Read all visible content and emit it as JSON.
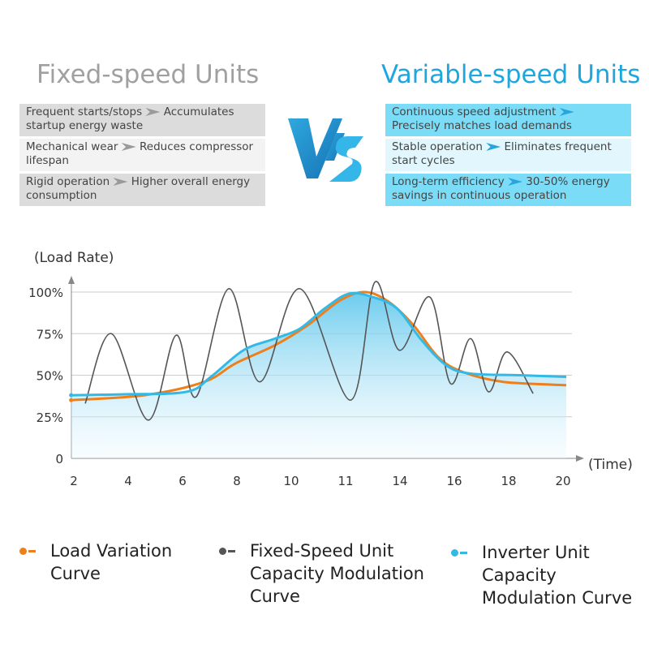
{
  "left": {
    "title": "Fixed-speed Units",
    "rows": [
      {
        "a": "Frequent starts/stops",
        "b": "Accumulates startup energy waste"
      },
      {
        "a": "Mechanical wear",
        "b": "Reduces compressor lifespan"
      },
      {
        "a": "Rigid operation",
        "b": "Higher overall energy consumption"
      }
    ]
  },
  "right": {
    "title": "Variable-speed Units",
    "rows": [
      {
        "a": "Continuous speed adjustment",
        "b": "Precisely matches load demands"
      },
      {
        "a": "Stable operation",
        "b": "Eliminates frequent start cycles"
      },
      {
        "a": "Long-term efficiency",
        "b": "30-50% energy savings in continuous operation"
      }
    ]
  },
  "vs": "VS",
  "chart_data": {
    "type": "line",
    "ylabel": "(Load Rate)",
    "xlabel": "(Time)",
    "yticks": [
      "0",
      "25%",
      "50%",
      "75%",
      "100%"
    ],
    "ylim": [
      0,
      100
    ],
    "xticks": [
      "2",
      "4",
      "6",
      "8",
      "10",
      "11",
      "14",
      "16",
      "18",
      "20"
    ],
    "x_note": "x values are positions along tick index (0-9)",
    "series": [
      {
        "name": "Load Variation Curve",
        "color": "#ef7f1a",
        "points": [
          [
            -0.05,
            35
          ],
          [
            1.3,
            38
          ],
          [
            2.4,
            46
          ],
          [
            2.97,
            57
          ],
          [
            3.7,
            68
          ],
          [
            4.3,
            80
          ],
          [
            4.9,
            95
          ],
          [
            5.36,
            100
          ],
          [
            5.8,
            94
          ],
          [
            6.25,
            80
          ],
          [
            6.7,
            61
          ],
          [
            7.15,
            52
          ],
          [
            7.9,
            46
          ],
          [
            9.06,
            44
          ]
        ]
      },
      {
        "name": "Fixed-Speed Unit Capacity Modulation Curve",
        "color": "#555555",
        "points": [
          [
            0.21,
            33
          ],
          [
            0.69,
            75
          ],
          [
            1.37,
            23
          ],
          [
            1.88,
            74
          ],
          [
            2.25,
            37
          ],
          [
            2.85,
            102
          ],
          [
            3.42,
            46
          ],
          [
            4.16,
            102
          ],
          [
            5.09,
            35
          ],
          [
            5.54,
            106
          ],
          [
            5.99,
            65
          ],
          [
            6.55,
            97
          ],
          [
            6.93,
            45
          ],
          [
            7.3,
            72
          ],
          [
            7.63,
            40
          ],
          [
            7.97,
            64
          ],
          [
            8.45,
            39
          ]
        ]
      },
      {
        "name": "Inverter Unit Capacity Modulation Curve",
        "color": "#33b9e6",
        "points": [
          [
            -0.05,
            38
          ],
          [
            0.88,
            38.5
          ],
          [
            2.07,
            40
          ],
          [
            2.52,
            49
          ],
          [
            3.12,
            65
          ],
          [
            3.7,
            72
          ],
          [
            4.16,
            78
          ],
          [
            4.61,
            90
          ],
          [
            5.06,
            99
          ],
          [
            5.5,
            97
          ],
          [
            5.95,
            90
          ],
          [
            6.4,
            71
          ],
          [
            6.85,
            56
          ],
          [
            7.3,
            51
          ],
          [
            8.2,
            50
          ],
          [
            9.06,
            49
          ]
        ]
      }
    ]
  },
  "legend": [
    {
      "label": "Load Variation Curve"
    },
    {
      "label": "Fixed-Speed Unit Capacity Modulation Curve"
    },
    {
      "label": "Inverter Unit Capacity Modulation Curve"
    }
  ]
}
